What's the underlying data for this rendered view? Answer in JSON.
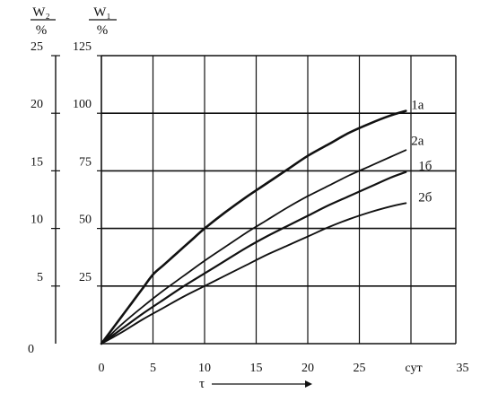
{
  "chart_data": {
    "type": "line",
    "xlabel": "τ",
    "x_unit_label": "сут",
    "x_ticks": [
      0,
      5,
      10,
      15,
      20,
      25,
      35
    ],
    "xlim": [
      0,
      35
    ],
    "y_axes": {
      "left_outer": {
        "label_top": "W₂",
        "label_bottom": "%",
        "ticks": [
          0,
          5,
          10,
          15,
          20,
          25
        ],
        "ylim": [
          0,
          25
        ]
      },
      "left_inner": {
        "label_top": "W₁",
        "label_bottom": "%",
        "ticks": [
          25,
          50,
          75,
          100,
          125
        ],
        "ylim": [
          0,
          125
        ]
      }
    },
    "grid": "horizontal-and-vertical",
    "series": [
      {
        "name": "1а",
        "axis": "left_inner",
        "x": [
          0,
          1,
          2,
          3,
          4,
          5,
          6,
          7,
          8,
          9,
          10,
          12,
          14,
          16,
          18,
          20,
          22,
          24,
          26,
          28,
          29.5
        ],
        "y": [
          0,
          6,
          12,
          18,
          24,
          30,
          34,
          38,
          42,
          46,
          50,
          57,
          63.5,
          69.5,
          75.5,
          81.5,
          86.5,
          91.5,
          95.5,
          99,
          101
        ]
      },
      {
        "name": "2а",
        "axis": "left_inner",
        "x": [
          0,
          2,
          4,
          6,
          8,
          10,
          12,
          14,
          16,
          18,
          20,
          22,
          24,
          26,
          28,
          29.5
        ],
        "y": [
          0,
          8.5,
          16,
          23,
          29.5,
          36,
          42,
          48,
          53.5,
          59,
          64,
          68.5,
          73,
          77,
          81,
          84
        ]
      },
      {
        "name": "1б",
        "axis": "left_inner",
        "x": [
          0,
          2,
          4,
          6,
          8,
          10,
          12,
          14,
          16,
          18,
          20,
          22,
          24,
          26,
          28,
          29.5
        ],
        "y": [
          0,
          6.5,
          13,
          19,
          25,
          30.5,
          36,
          41.5,
          46.5,
          51,
          55.5,
          60,
          64,
          68,
          72,
          74.5
        ]
      },
      {
        "name": "2б",
        "axis": "left_inner",
        "x": [
          0,
          2,
          4,
          6,
          8,
          10,
          12,
          14,
          16,
          18,
          20,
          22,
          24,
          26,
          28,
          29.5
        ],
        "y": [
          0,
          5,
          10.5,
          15.5,
          20.5,
          25,
          29.5,
          34,
          38.5,
          42.5,
          46.5,
          50.5,
          54,
          57,
          59.5,
          61
        ]
      }
    ]
  }
}
